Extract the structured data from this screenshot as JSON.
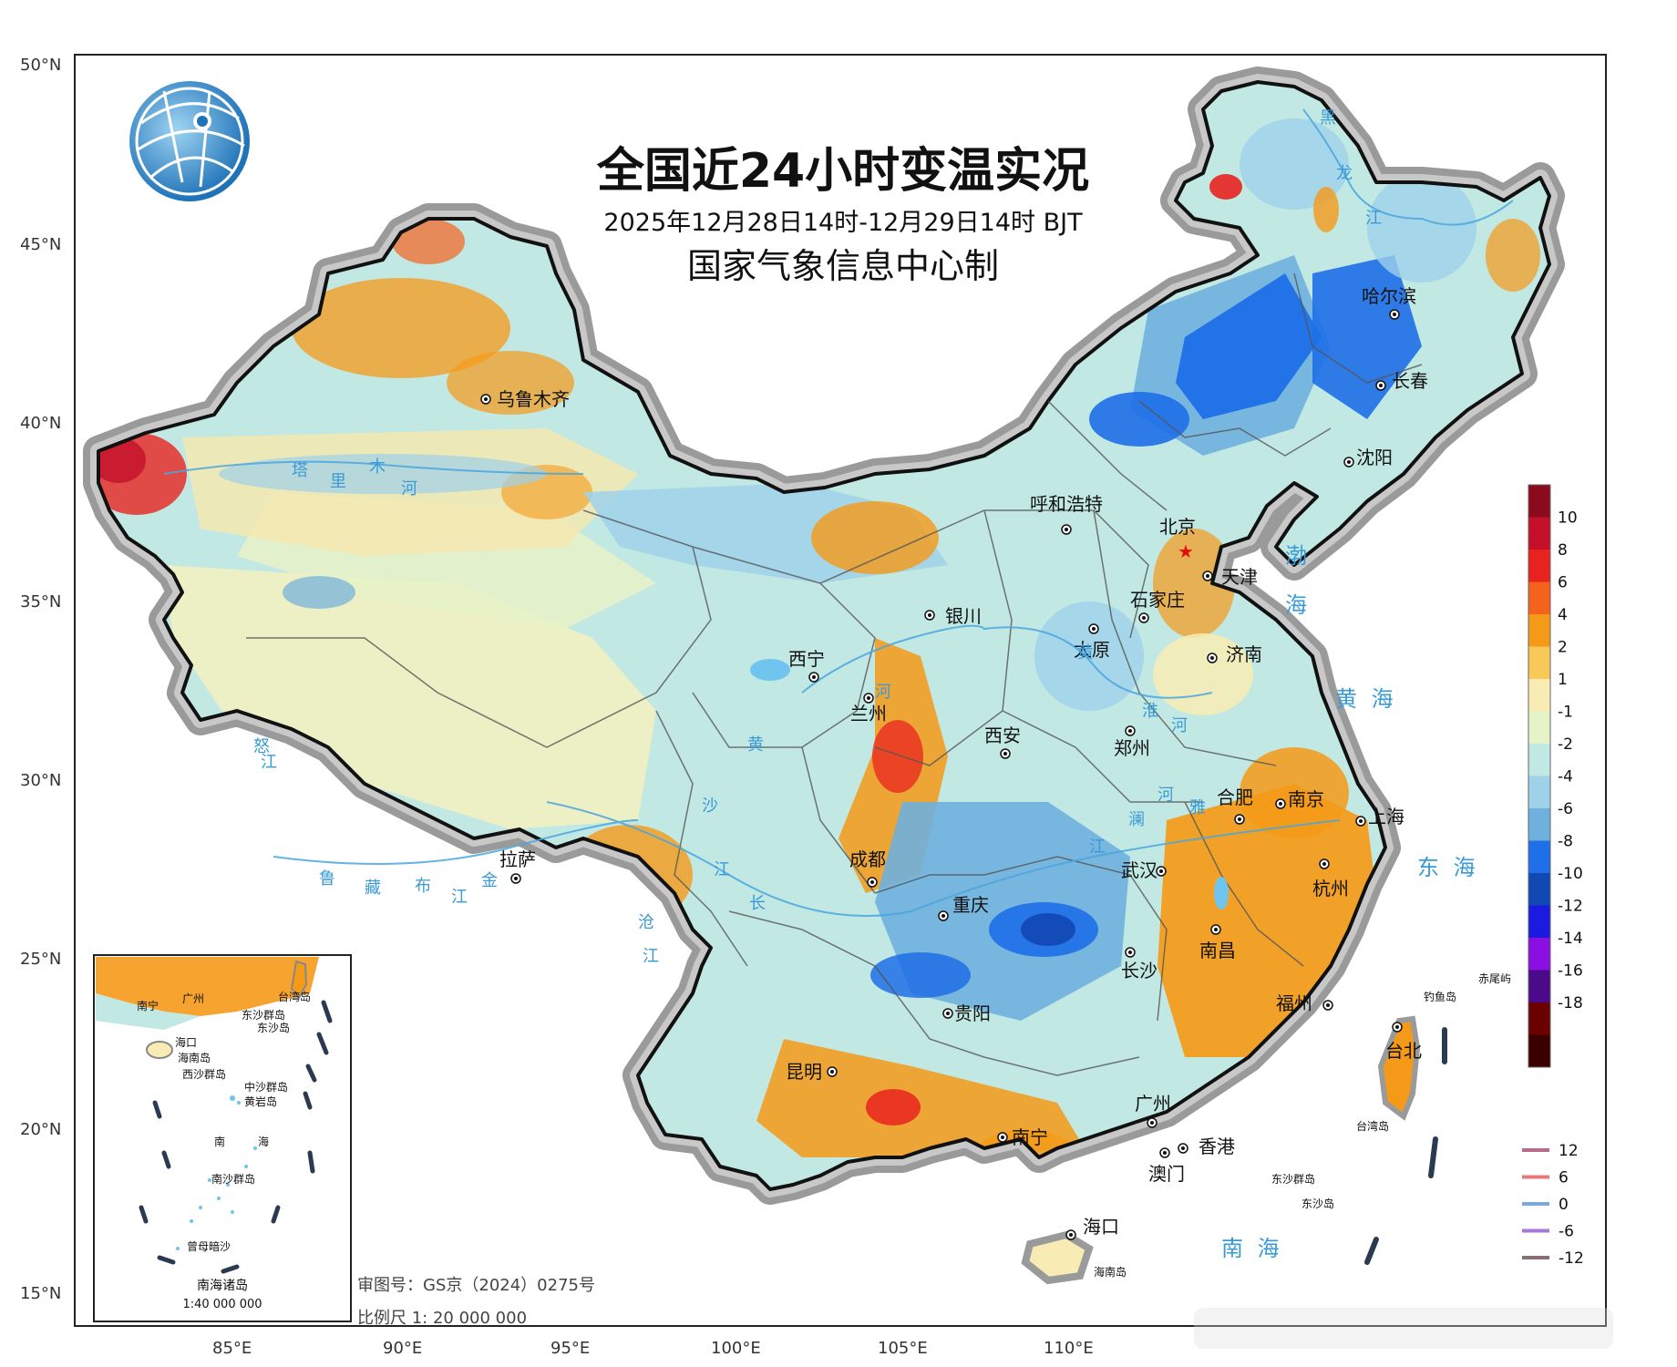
{
  "title": "全国近24小时变温实况",
  "subtitle": "2025年12月28日14时-12月29日14时 BJT",
  "producer": "国家气象信息中心制",
  "review_number": "审图号：GS京（2024）0275号",
  "scale": "比例尺 1: 20 000 000",
  "inset": {
    "title": "南海诸岛",
    "scale": "1:40 000 000",
    "labels": [
      "南宁",
      "广州",
      "台湾岛",
      "东沙群岛",
      "东沙岛",
      "海口",
      "海南岛",
      "西沙群岛",
      "中沙群岛",
      "黄岩岛",
      "南",
      "海",
      "南沙群岛",
      "曾母暗沙"
    ]
  },
  "lat_labels": [
    "50°N",
    "45°N",
    "40°N",
    "35°N",
    "30°N",
    "25°N",
    "20°N",
    "15°N"
  ],
  "lon_labels": [
    "85°E",
    "90°E",
    "95°E",
    "100°E",
    "105°E",
    "110°E"
  ],
  "cities": [
    {
      "name": "乌鲁木齐"
    },
    {
      "name": "哈尔滨"
    },
    {
      "name": "长春"
    },
    {
      "name": "沈阳"
    },
    {
      "name": "呼和浩特"
    },
    {
      "name": "北京"
    },
    {
      "name": "天津"
    },
    {
      "name": "石家庄"
    },
    {
      "name": "银川"
    },
    {
      "name": "太原"
    },
    {
      "name": "济南"
    },
    {
      "name": "西宁"
    },
    {
      "name": "兰州"
    },
    {
      "name": "西安"
    },
    {
      "name": "郑州"
    },
    {
      "name": "合肥"
    },
    {
      "name": "南京"
    },
    {
      "name": "上海"
    },
    {
      "name": "拉萨"
    },
    {
      "name": "成都"
    },
    {
      "name": "武汉"
    },
    {
      "name": "杭州"
    },
    {
      "name": "重庆"
    },
    {
      "name": "长沙"
    },
    {
      "name": "南昌"
    },
    {
      "name": "贵阳"
    },
    {
      "name": "福州"
    },
    {
      "name": "台北"
    },
    {
      "name": "昆明"
    },
    {
      "name": "广州"
    },
    {
      "name": "南宁"
    },
    {
      "name": "香港"
    },
    {
      "name": "澳门"
    },
    {
      "name": "海口"
    }
  ],
  "sea_labels": [
    "渤",
    "海",
    "黄 海",
    "东 海",
    "南 海"
  ],
  "island_labels": [
    "台湾岛",
    "海南岛",
    "东沙群岛",
    "东沙岛",
    "钓鱼岛",
    "赤尾屿"
  ],
  "river_labels": [
    "黑",
    "龙",
    "江",
    "塔",
    "里",
    "木",
    "河",
    "黄",
    "河",
    "黄",
    "河",
    "淮",
    "河",
    "雅",
    "鲁",
    "藏",
    "布",
    "江",
    "金",
    "沙",
    "江",
    "长",
    "江",
    "澜",
    "沧",
    "江",
    "怒",
    "江"
  ],
  "legend_fill": {
    "labels": [
      "10",
      "8",
      "6",
      "4",
      "2",
      "1",
      "-1",
      "-2",
      "-4",
      "-6",
      "-8",
      "-10",
      "-12",
      "-14",
      "-16",
      "-18"
    ],
    "colors": [
      "#8b0a1e",
      "#c4102a",
      "#e8231f",
      "#f5621e",
      "#f59a18",
      "#f8c859",
      "#f8ecb4",
      "#e6f2c8",
      "#c2e8e4",
      "#9fd1ea",
      "#6fb0dd",
      "#1e6fe8",
      "#1248b4",
      "#1a1ae0",
      "#8a0fe0",
      "#4a0a8a",
      "#6a0000",
      "#3a0000"
    ]
  },
  "legend_line": {
    "items": [
      {
        "label": "12",
        "color": "#b86a8a"
      },
      {
        "label": "6",
        "color": "#e87878"
      },
      {
        "label": "0",
        "color": "#7aa8e0"
      },
      {
        "label": "-6",
        "color": "#a878d8"
      },
      {
        "label": "-12",
        "color": "#8a7070"
      }
    ]
  },
  "capital": "北京"
}
